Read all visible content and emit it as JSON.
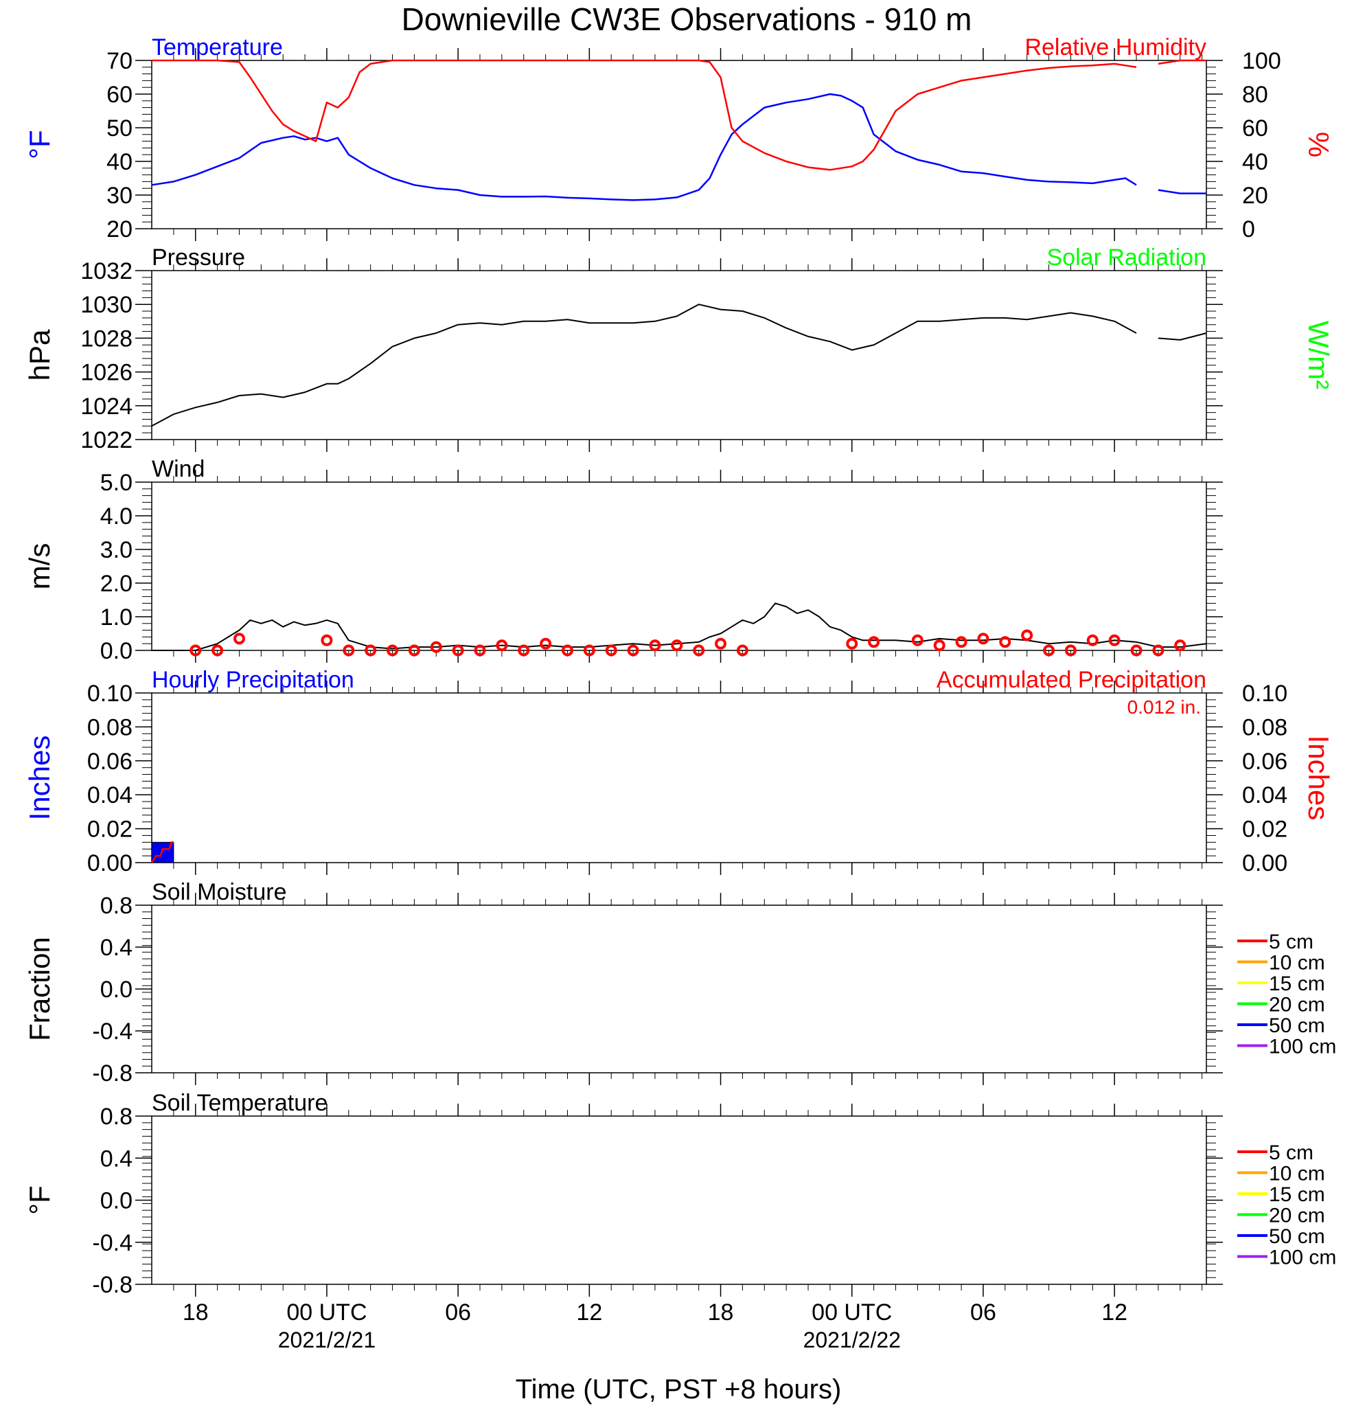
{
  "title": "Downieville CW3E Observations - 910 m",
  "x_axis": {
    "label": "Time (UTC, PST +8 hours)",
    "tick_labels": [
      "18",
      "00 UTC",
      "06",
      "12",
      "18",
      "00 UTC",
      "06",
      "12"
    ],
    "tick_hours": [
      18,
      24,
      30,
      36,
      42,
      48,
      54,
      60
    ],
    "date_labels": [
      {
        "hour": 24,
        "text": "2021/2/21"
      },
      {
        "hour": 48,
        "text": "2021/2/22"
      }
    ],
    "range_hours": [
      16,
      64.2
    ]
  },
  "chart_data": [
    {
      "type": "line",
      "panel": "temperature_rh",
      "left_title": "Temperature",
      "right_title": "Relative Humidity",
      "ylabel_left": "°F",
      "ylabel_right": "%",
      "ylim_left": [
        20,
        70
      ],
      "ylim_right": [
        0,
        100
      ],
      "yticks_left": [
        "70",
        "60",
        "50",
        "40",
        "30",
        "20"
      ],
      "yticks_right": [
        "100",
        "80",
        "60",
        "40",
        "20",
        "0"
      ],
      "colors": {
        "left": "#0000ff",
        "right": "#ff0000",
        "left_title": "#0000ff",
        "right_title": "#ff0000"
      },
      "series": [
        {
          "name": "Temperature",
          "axis": "left",
          "color": "#0000ff",
          "gap": [
            61.1,
            62.0
          ],
          "x": [
            16,
            17,
            18,
            19,
            20,
            21,
            22,
            22.5,
            23,
            23.5,
            24,
            24.5,
            25,
            26,
            27,
            28,
            29,
            30,
            31,
            32,
            33,
            34,
            35,
            36,
            37,
            38,
            39,
            40,
            41,
            41.5,
            42,
            42.5,
            43,
            44,
            45,
            46,
            47,
            47.5,
            48,
            48.5,
            49,
            50,
            51,
            52,
            53,
            54,
            55,
            56,
            57,
            58,
            59,
            60,
            60.5,
            61,
            62,
            63,
            64.2
          ],
          "y": [
            33,
            34,
            36,
            38.5,
            41,
            45.5,
            47,
            47.5,
            46.5,
            47,
            46,
            47,
            42,
            38,
            35,
            33,
            32,
            31.5,
            30,
            29.5,
            29.5,
            29.6,
            29.2,
            29,
            28.7,
            28.5,
            28.7,
            29.3,
            31.5,
            35,
            42,
            48,
            51,
            56,
            57.5,
            58.5,
            60,
            59.5,
            58,
            56,
            48,
            43,
            40.5,
            39,
            37,
            36.5,
            35.5,
            34.5,
            34,
            33.8,
            33.5,
            34.5,
            35,
            33,
            31.5,
            30.5,
            30.5
          ]
        },
        {
          "name": "Relative Humidity",
          "axis": "right",
          "color": "#ff0000",
          "gap": [
            61.1,
            62.0
          ],
          "x": [
            16,
            17,
            18,
            19,
            20,
            20.5,
            21,
            21.5,
            22,
            22.5,
            23,
            23.5,
            24,
            24.5,
            25,
            25.5,
            26,
            27,
            28,
            29,
            30,
            31,
            32,
            33,
            34,
            35,
            36,
            37,
            38,
            39,
            40,
            41,
            41.5,
            42,
            42.5,
            43,
            44,
            45,
            46,
            47,
            47.5,
            48,
            48.5,
            49,
            50,
            51,
            52,
            53,
            54,
            55,
            56,
            57,
            58,
            59,
            60,
            60.5,
            61,
            62,
            63,
            64.2
          ],
          "y": [
            100,
            100,
            100,
            100,
            99,
            90,
            80,
            70,
            62,
            58,
            55,
            52,
            75,
            72,
            78,
            93,
            98,
            100,
            100,
            100,
            100,
            100,
            100,
            100,
            100,
            100,
            100,
            100,
            100,
            100,
            100,
            100,
            99,
            90,
            60,
            52,
            45,
            40,
            36.5,
            35,
            36,
            37,
            40,
            47,
            70,
            80,
            84,
            88,
            90,
            92,
            94,
            95.5,
            96.5,
            97,
            98,
            97,
            96,
            98,
            100,
            100
          ]
        }
      ]
    },
    {
      "type": "line",
      "panel": "pressure",
      "left_title": "Pressure",
      "right_title": "Solar Radiation",
      "ylabel_left": "hPa",
      "ylabel_right": "W/m²",
      "ylim": [
        1022,
        1032
      ],
      "yticks": [
        "1032",
        "1030",
        "1028",
        "1026",
        "1024",
        "1022"
      ],
      "colors": {
        "line": "#000000",
        "right_title": "#00ff00"
      },
      "series": [
        {
          "name": "Pressure",
          "color": "#000000",
          "gap": [
            61.1,
            62.0
          ],
          "x": [
            16,
            17,
            18,
            19,
            20,
            21,
            22,
            23,
            24,
            24.5,
            25,
            26,
            27,
            28,
            29,
            30,
            31,
            32,
            33,
            34,
            35,
            36,
            37,
            38,
            39,
            40,
            41,
            42,
            43,
            44,
            45,
            46,
            47,
            48,
            49,
            50,
            51,
            52,
            53,
            54,
            55,
            56,
            57,
            58,
            59,
            60,
            61,
            62,
            63,
            64.2
          ],
          "y": [
            1022.8,
            1023.5,
            1023.9,
            1024.2,
            1024.6,
            1024.7,
            1024.5,
            1024.8,
            1025.3,
            1025.3,
            1025.6,
            1026.5,
            1027.5,
            1028.0,
            1028.3,
            1028.8,
            1028.9,
            1028.8,
            1029.0,
            1029.0,
            1029.1,
            1028.9,
            1028.9,
            1028.9,
            1029.0,
            1029.3,
            1030.0,
            1029.7,
            1029.6,
            1029.2,
            1028.6,
            1028.1,
            1027.8,
            1027.3,
            1027.6,
            1028.3,
            1029.0,
            1029.0,
            1029.1,
            1029.2,
            1029.2,
            1029.1,
            1029.3,
            1029.5,
            1029.3,
            1029.0,
            1028.3,
            1028.0,
            1027.9,
            1028.3
          ]
        }
      ]
    },
    {
      "type": "line",
      "panel": "wind",
      "left_title": "Wind",
      "ylabel_left": "m/s",
      "ylim": [
        0,
        5
      ],
      "yticks": [
        "5.0",
        "4.0",
        "3.0",
        "2.0",
        "1.0",
        "0.0"
      ],
      "colors": {
        "line": "#000000",
        "markers": "#ff0000"
      },
      "series": [
        {
          "name": "Wind Speed",
          "color": "#000000",
          "x": [
            16,
            17,
            18,
            19,
            19.5,
            20,
            20.5,
            21,
            21.5,
            22,
            22.5,
            23,
            23.5,
            24,
            24.5,
            25,
            26,
            27,
            28,
            29,
            30,
            31,
            32,
            33,
            34,
            35,
            36,
            37,
            38,
            39,
            40,
            41,
            41.5,
            42,
            42.5,
            43,
            43.5,
            44,
            44.5,
            45,
            45.5,
            46,
            46.5,
            47,
            47.5,
            48,
            48.5,
            49,
            50,
            51,
            52,
            53,
            54,
            55,
            56,
            57,
            58,
            59,
            60,
            61,
            62,
            63,
            64.2
          ],
          "y": [
            0,
            0,
            0,
            0.2,
            0.4,
            0.6,
            0.9,
            0.8,
            0.9,
            0.7,
            0.85,
            0.75,
            0.8,
            0.9,
            0.8,
            0.3,
            0.1,
            0.05,
            0.1,
            0.1,
            0.15,
            0.1,
            0.15,
            0.1,
            0.15,
            0.1,
            0.1,
            0.15,
            0.2,
            0.15,
            0.2,
            0.25,
            0.4,
            0.5,
            0.7,
            0.9,
            0.8,
            1.0,
            1.4,
            1.3,
            1.1,
            1.2,
            1.0,
            0.7,
            0.6,
            0.4,
            0.3,
            0.3,
            0.3,
            0.25,
            0.35,
            0.3,
            0.3,
            0.35,
            0.3,
            0.2,
            0.25,
            0.2,
            0.3,
            0.25,
            0.1,
            0.1,
            0.2
          ]
        },
        {
          "name": "Hourly Wind Markers",
          "color": "#ff0000",
          "x": [
            18,
            19,
            20,
            24,
            25,
            26,
            27,
            28,
            29,
            30,
            31,
            32,
            33,
            34,
            35,
            36,
            37,
            38,
            39,
            40,
            41,
            42,
            43,
            48,
            49,
            51,
            52,
            53,
            54,
            55,
            56,
            57,
            58,
            59,
            60,
            61,
            62,
            63
          ],
          "y": [
            0.0,
            0.0,
            0.35,
            0.3,
            0.0,
            0.0,
            0.0,
            0.0,
            0.1,
            0.0,
            0.0,
            0.15,
            0.0,
            0.2,
            0.0,
            0.0,
            0.0,
            0.0,
            0.15,
            0.15,
            0.0,
            0.2,
            0.0,
            0.2,
            0.25,
            0.3,
            0.15,
            0.25,
            0.35,
            0.25,
            0.45,
            0.0,
            0.0,
            0.3,
            0.3,
            0.0,
            0.0,
            0.15
          ]
        }
      ]
    },
    {
      "type": "bar",
      "panel": "precipitation",
      "left_title": "Hourly Precipitation",
      "right_title": "Accumulated Precipitation",
      "annotation": "0.012 in.",
      "ylabel_left": "Inches",
      "ylabel_right": "Inches",
      "ylim": [
        0,
        0.1
      ],
      "yticks": [
        "0.10",
        "0.08",
        "0.06",
        "0.04",
        "0.02",
        "0.00"
      ],
      "colors": {
        "bars": "#0000ee",
        "accumulated": "#ff0000",
        "left_title": "#0000ff",
        "right_title": "#ff0000"
      },
      "series": [
        {
          "name": "Hourly Precipitation",
          "color": "#0000ee",
          "x_start": [
            16
          ],
          "x_end": [
            17
          ],
          "values": [
            0.012
          ]
        },
        {
          "name": "Accumulated Precipitation",
          "color": "#ff0000",
          "gap": [
            61.1,
            62.0
          ],
          "x": [
            16,
            16.2,
            16.4,
            16.5,
            16.8,
            16.9,
            17,
            64.2
          ],
          "y": [
            0,
            0.004,
            0.004,
            0.008,
            0.008,
            0.012,
            0.012,
            0.012
          ]
        }
      ]
    },
    {
      "type": "line",
      "panel": "soil_moisture",
      "left_title": "Soil Moisture",
      "ylabel_left": "Fraction",
      "ylim": [
        -1,
        1
      ],
      "yticks": [
        "0.8",
        "0.4",
        "0.0",
        "-0.4",
        "-0.8"
      ],
      "legend": [
        {
          "label": "5 cm",
          "color": "#ff0000"
        },
        {
          "label": "10 cm",
          "color": "#ffa500"
        },
        {
          "label": "15 cm",
          "color": "#ffff00"
        },
        {
          "label": "20 cm",
          "color": "#00ff00"
        },
        {
          "label": "50 cm",
          "color": "#0000ff"
        },
        {
          "label": "100 cm",
          "color": "#a020f0"
        }
      ],
      "series": []
    },
    {
      "type": "line",
      "panel": "soil_temperature",
      "left_title": "Soil Temperature",
      "ylabel_left": "°F",
      "ylim": [
        -1,
        1
      ],
      "yticks": [
        "0.8",
        "0.4",
        "0.0",
        "-0.4",
        "-0.8"
      ],
      "legend": [
        {
          "label": "5 cm",
          "color": "#ff0000"
        },
        {
          "label": "10 cm",
          "color": "#ffa500"
        },
        {
          "label": "15 cm",
          "color": "#ffff00"
        },
        {
          "label": "20 cm",
          "color": "#00ff00"
        },
        {
          "label": "50 cm",
          "color": "#0000ff"
        },
        {
          "label": "100 cm",
          "color": "#a020f0"
        }
      ],
      "series": []
    }
  ]
}
